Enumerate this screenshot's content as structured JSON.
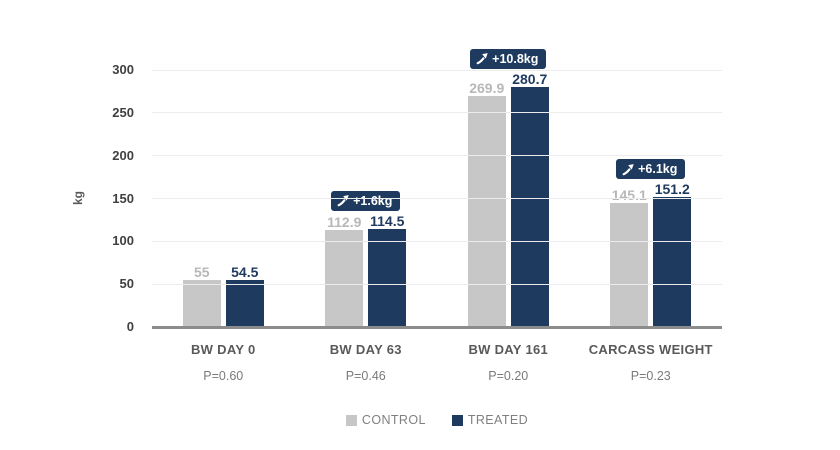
{
  "chart_data": {
    "type": "bar",
    "title": "",
    "ylabel": "kg",
    "ylim": [
      0,
      300
    ],
    "yticks": [
      0,
      50,
      100,
      150,
      200,
      250,
      300
    ],
    "grid": true,
    "legend_position": "bottom",
    "categories": [
      "BW DAY 0",
      "BW DAY 63",
      "BW DAY 161",
      "CARCASS WEIGHT"
    ],
    "p_values": [
      "P=0.60",
      "P=0.46",
      "P=0.20",
      "P=0.23"
    ],
    "series": [
      {
        "name": "CONTROL",
        "color": "#c7c7c7",
        "label_color": "#b8b8b8",
        "values": [
          55,
          112.9,
          269.9,
          145.1
        ]
      },
      {
        "name": "TREATED",
        "color": "#1e3a5f",
        "label_color": "#1e3a5f",
        "values": [
          54.5,
          114.5,
          280.7,
          151.2
        ]
      }
    ],
    "annotations": [
      {
        "category_index": 1,
        "label": "+1.6kg",
        "icon": "trend-up-arrow-icon"
      },
      {
        "category_index": 2,
        "label": "+10.8kg",
        "icon": "trend-up-arrow-icon"
      },
      {
        "category_index": 3,
        "label": "+6.1kg",
        "icon": "trend-up-arrow-icon"
      }
    ],
    "annotation_style": {
      "background": "#1e3a5f",
      "text_color": "#ffffff"
    }
  },
  "colors": {
    "gridline": "#ececec",
    "axis_line": "#8c8c8c",
    "tick_label": "#404040",
    "category_label": "#595959",
    "p_value_label": "#7a7a7a",
    "legend_label": "#808080",
    "background": "#ffffff"
  }
}
